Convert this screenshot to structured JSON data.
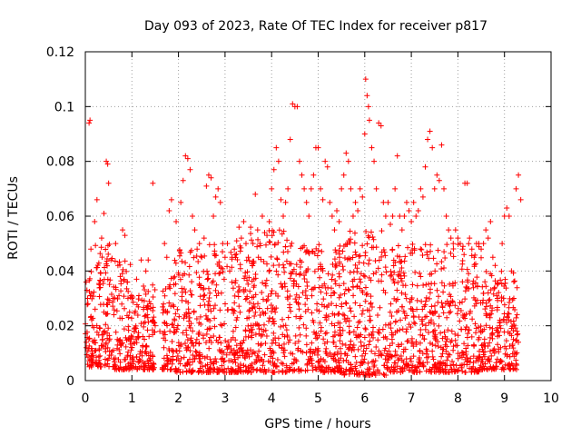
{
  "chart_data": {
    "type": "scatter",
    "title": "Day 093 of 2023, Rate Of TEC Index for receiver p817",
    "xlabel": "GPS time / hours",
    "ylabel": "ROTI / TECUs",
    "xlim": [
      0,
      10
    ],
    "ylim": [
      0,
      0.12
    ],
    "x_ticks": [
      "0",
      "1",
      "2",
      "3",
      "4",
      "5",
      "6",
      "7",
      "8",
      "9",
      "10"
    ],
    "y_ticks": [
      "0",
      "0.02",
      "0.04",
      "0.06",
      "0.08",
      "0.1",
      "0.12"
    ],
    "grid": true,
    "marker": "plus",
    "color": "#ff0000",
    "series": [
      {
        "points": [
          [
            0.02,
            0.012
          ],
          [
            0.05,
            0.03
          ],
          [
            0.08,
            0.094
          ],
          [
            0.1,
            0.095
          ],
          [
            0.12,
            0.048
          ],
          [
            0.15,
            0.02
          ],
          [
            0.2,
            0.058
          ],
          [
            0.25,
            0.066
          ],
          [
            0.3,
            0.035
          ],
          [
            0.35,
            0.052
          ],
          [
            0.4,
            0.061
          ],
          [
            0.45,
            0.08
          ],
          [
            0.48,
            0.079
          ],
          [
            0.5,
            0.072
          ],
          [
            0.55,
            0.044
          ],
          [
            0.6,
            0.03
          ],
          [
            0.65,
            0.05
          ],
          [
            0.7,
            0.042
          ],
          [
            0.75,
            0.038
          ],
          [
            0.8,
            0.055
          ],
          [
            0.85,
            0.053
          ],
          [
            0.9,
            0.036
          ],
          [
            0.95,
            0.025
          ],
          [
            1.0,
            0.03
          ],
          [
            1.05,
            0.018
          ],
          [
            1.1,
            0.037
          ],
          [
            1.15,
            0.031
          ],
          [
            1.2,
            0.044
          ],
          [
            1.25,
            0.026
          ],
          [
            1.3,
            0.04
          ],
          [
            1.35,
            0.044
          ],
          [
            1.4,
            0.028
          ],
          [
            1.45,
            0.072
          ],
          [
            1.5,
            0.02
          ],
          [
            1.6,
            0.018
          ],
          [
            1.7,
            0.05
          ],
          [
            1.75,
            0.045
          ],
          [
            1.8,
            0.062
          ],
          [
            1.85,
            0.066
          ],
          [
            1.9,
            0.035
          ],
          [
            1.95,
            0.058
          ],
          [
            2.05,
            0.065
          ],
          [
            2.1,
            0.073
          ],
          [
            2.15,
            0.082
          ],
          [
            2.2,
            0.081
          ],
          [
            2.25,
            0.077
          ],
          [
            2.3,
            0.06
          ],
          [
            2.35,
            0.055
          ],
          [
            2.4,
            0.048
          ],
          [
            2.45,
            0.05
          ],
          [
            2.5,
            0.045
          ],
          [
            2.55,
            0.052
          ],
          [
            2.6,
            0.071
          ],
          [
            2.65,
            0.075
          ],
          [
            2.7,
            0.074
          ],
          [
            2.75,
            0.06
          ],
          [
            2.8,
            0.067
          ],
          [
            2.85,
            0.07
          ],
          [
            2.9,
            0.065
          ],
          [
            2.95,
            0.05
          ],
          [
            3.0,
            0.045
          ],
          [
            3.05,
            0.05
          ],
          [
            3.1,
            0.04
          ],
          [
            3.15,
            0.045
          ],
          [
            3.2,
            0.048
          ],
          [
            3.25,
            0.051
          ],
          [
            3.3,
            0.056
          ],
          [
            3.35,
            0.052
          ],
          [
            3.4,
            0.058
          ],
          [
            3.45,
            0.05
          ],
          [
            3.5,
            0.045
          ],
          [
            3.55,
            0.056
          ],
          [
            3.6,
            0.05
          ],
          [
            3.65,
            0.068
          ],
          [
            3.7,
            0.055
          ],
          [
            3.75,
            0.05
          ],
          [
            3.8,
            0.06
          ],
          [
            3.85,
            0.054
          ],
          [
            3.9,
            0.053
          ],
          [
            3.95,
            0.058
          ],
          [
            4.0,
            0.07
          ],
          [
            4.05,
            0.077
          ],
          [
            4.1,
            0.085
          ],
          [
            4.15,
            0.08
          ],
          [
            4.2,
            0.066
          ],
          [
            4.25,
            0.06
          ],
          [
            4.3,
            0.065
          ],
          [
            4.35,
            0.07
          ],
          [
            4.4,
            0.088
          ],
          [
            4.45,
            0.101
          ],
          [
            4.5,
            0.1
          ],
          [
            4.55,
            0.1
          ],
          [
            4.6,
            0.08
          ],
          [
            4.65,
            0.075
          ],
          [
            4.7,
            0.07
          ],
          [
            4.75,
            0.065
          ],
          [
            4.8,
            0.06
          ],
          [
            4.85,
            0.07
          ],
          [
            4.9,
            0.075
          ],
          [
            4.95,
            0.085
          ],
          [
            5.0,
            0.085
          ],
          [
            5.05,
            0.07
          ],
          [
            5.1,
            0.066
          ],
          [
            5.15,
            0.08
          ],
          [
            5.2,
            0.078
          ],
          [
            5.25,
            0.065
          ],
          [
            5.3,
            0.06
          ],
          [
            5.35,
            0.055
          ],
          [
            5.4,
            0.062
          ],
          [
            5.45,
            0.058
          ],
          [
            5.5,
            0.07
          ],
          [
            5.55,
            0.075
          ],
          [
            5.6,
            0.083
          ],
          [
            5.65,
            0.08
          ],
          [
            5.7,
            0.07
          ],
          [
            5.75,
            0.06
          ],
          [
            5.8,
            0.065
          ],
          [
            5.85,
            0.062
          ],
          [
            5.9,
            0.07
          ],
          [
            5.95,
            0.067
          ],
          [
            6.0,
            0.09
          ],
          [
            6.02,
            0.11
          ],
          [
            6.05,
            0.104
          ],
          [
            6.08,
            0.1
          ],
          [
            6.1,
            0.095
          ],
          [
            6.15,
            0.085
          ],
          [
            6.2,
            0.08
          ],
          [
            6.25,
            0.07
          ],
          [
            6.3,
            0.094
          ],
          [
            6.35,
            0.093
          ],
          [
            6.4,
            0.065
          ],
          [
            6.45,
            0.06
          ],
          [
            6.5,
            0.065
          ],
          [
            6.55,
            0.057
          ],
          [
            6.6,
            0.06
          ],
          [
            6.65,
            0.07
          ],
          [
            6.7,
            0.082
          ],
          [
            6.75,
            0.06
          ],
          [
            6.8,
            0.055
          ],
          [
            6.85,
            0.06
          ],
          [
            6.9,
            0.065
          ],
          [
            6.95,
            0.062
          ],
          [
            7.0,
            0.058
          ],
          [
            7.05,
            0.065
          ],
          [
            7.1,
            0.06
          ],
          [
            7.15,
            0.062
          ],
          [
            7.2,
            0.07
          ],
          [
            7.25,
            0.067
          ],
          [
            7.3,
            0.078
          ],
          [
            7.35,
            0.088
          ],
          [
            7.4,
            0.091
          ],
          [
            7.45,
            0.085
          ],
          [
            7.5,
            0.07
          ],
          [
            7.55,
            0.075
          ],
          [
            7.6,
            0.073
          ],
          [
            7.65,
            0.086
          ],
          [
            7.7,
            0.07
          ],
          [
            7.75,
            0.06
          ],
          [
            7.8,
            0.055
          ],
          [
            7.85,
            0.052
          ],
          [
            7.9,
            0.05
          ],
          [
            7.95,
            0.055
          ],
          [
            8.0,
            0.052
          ],
          [
            8.05,
            0.05
          ],
          [
            8.1,
            0.048
          ],
          [
            8.15,
            0.072
          ],
          [
            8.2,
            0.072
          ],
          [
            8.25,
            0.052
          ],
          [
            8.3,
            0.048
          ],
          [
            8.35,
            0.045
          ],
          [
            8.4,
            0.05
          ],
          [
            8.45,
            0.05
          ],
          [
            8.5,
            0.048
          ],
          [
            8.55,
            0.05
          ],
          [
            8.6,
            0.055
          ],
          [
            8.65,
            0.052
          ],
          [
            8.7,
            0.058
          ],
          [
            8.75,
            0.045
          ],
          [
            8.8,
            0.042
          ],
          [
            8.85,
            0.03
          ],
          [
            8.9,
            0.02
          ],
          [
            8.95,
            0.05
          ],
          [
            9.0,
            0.06
          ],
          [
            9.05,
            0.063
          ],
          [
            9.1,
            0.06
          ],
          [
            9.15,
            0.04
          ],
          [
            9.2,
            0.03
          ],
          [
            9.25,
            0.07
          ],
          [
            9.3,
            0.075
          ],
          [
            9.35,
            0.066
          ]
        ],
        "dense_band": [
          [
            0.0,
            0.2,
            0.005,
            0.04
          ],
          [
            0.2,
            0.6,
            0.005,
            0.05
          ],
          [
            0.6,
            1.0,
            0.004,
            0.045
          ],
          [
            1.0,
            1.5,
            0.004,
            0.035
          ],
          [
            1.65,
            1.9,
            0.004,
            0.04
          ],
          [
            1.9,
            2.5,
            0.003,
            0.05
          ],
          [
            2.5,
            3.5,
            0.003,
            0.05
          ],
          [
            3.5,
            4.5,
            0.003,
            0.055
          ],
          [
            4.5,
            5.5,
            0.003,
            0.05
          ],
          [
            5.5,
            6.5,
            0.002,
            0.055
          ],
          [
            6.5,
            7.5,
            0.003,
            0.05
          ],
          [
            7.5,
            8.5,
            0.003,
            0.05
          ],
          [
            8.5,
            9.3,
            0.004,
            0.04
          ]
        ]
      }
    ]
  }
}
